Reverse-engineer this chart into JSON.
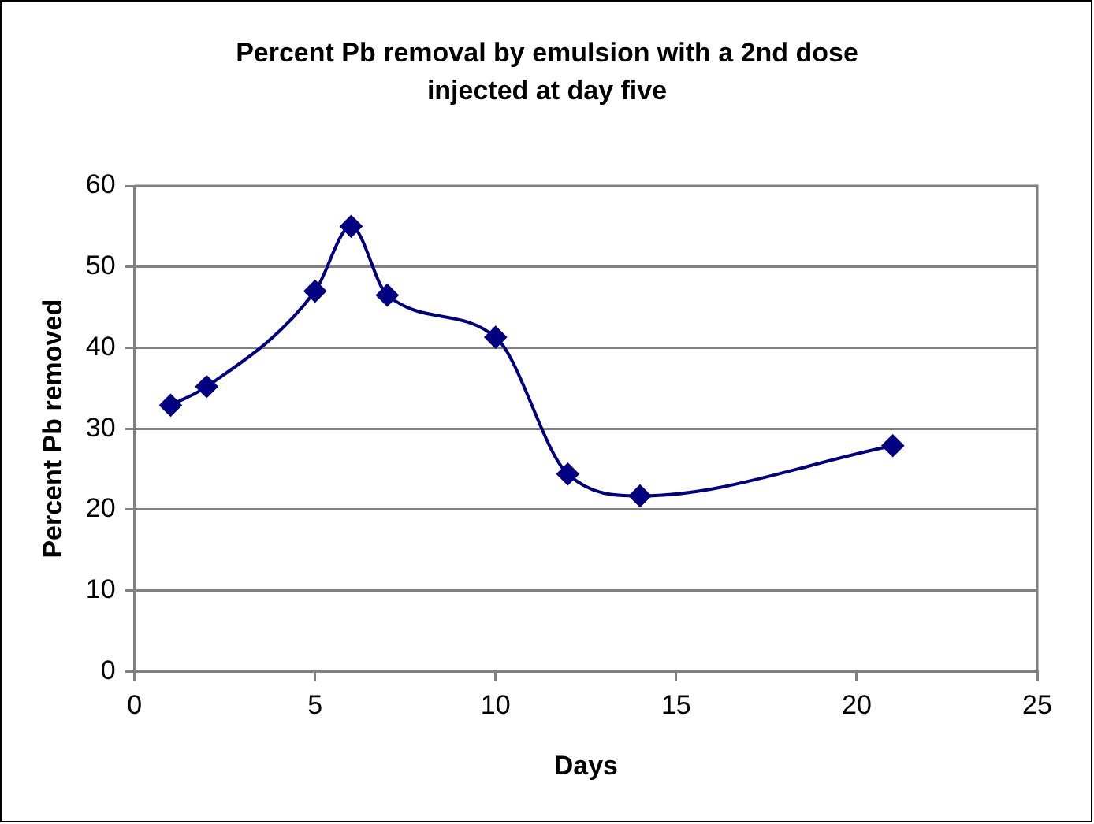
{
  "chart_data": {
    "type": "line",
    "title": "Percent Pb removal by emulsion with a 2nd dose injected at day five",
    "xlabel": "Days",
    "ylabel": "Percent Pb removed",
    "x": [
      1,
      2,
      5,
      6,
      7,
      10,
      12,
      14,
      21
    ],
    "series": [
      {
        "color": "#000080",
        "values": [
          32.9,
          35.2,
          47.0,
          55.0,
          46.5,
          41.3,
          24.4,
          21.7,
          27.9
        ]
      }
    ],
    "xlim": [
      0,
      25
    ],
    "xticks": [
      0,
      5,
      10,
      15,
      20,
      25
    ],
    "ylim": [
      0,
      60
    ],
    "yticks": [
      0,
      10,
      20,
      30,
      40,
      50,
      60
    ],
    "grid": "y",
    "legend": false,
    "marker": "diamond",
    "line_style": "solid"
  }
}
